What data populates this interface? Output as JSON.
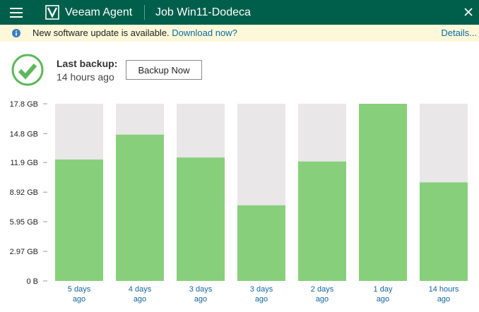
{
  "titlebar": {
    "app_name": "Veeam Agent",
    "job_title": "Job Win11-Dodeca",
    "bg_color": "#005f4b"
  },
  "notice": {
    "message": "New software update is available.",
    "link": "Download now?",
    "details": "Details..."
  },
  "status": {
    "last_backup_label": "Last backup:",
    "last_backup_value": "14 hours ago",
    "backup_button": "Backup Now",
    "state_icon": "success-check-icon",
    "state_color": "#5cb85c"
  },
  "chart_data": {
    "type": "bar",
    "categories": [
      [
        "5 days",
        "ago"
      ],
      [
        "4 days",
        "ago"
      ],
      [
        "3 days",
        "ago"
      ],
      [
        "3 days",
        "ago"
      ],
      [
        "2 days",
        "ago"
      ],
      [
        "1 day",
        "ago"
      ],
      [
        "14 hours",
        "ago"
      ]
    ],
    "values_gb": [
      12.2,
      14.7,
      12.4,
      7.6,
      12.0,
      17.8,
      9.9
    ],
    "ylim_gb": [
      0,
      17.8
    ],
    "y_ticks": [
      {
        "label": "17.8 GB",
        "value": 17.8
      },
      {
        "label": "14.8 GB",
        "value": 14.8
      },
      {
        "label": "11.9 GB",
        "value": 11.9
      },
      {
        "label": "8.92 GB",
        "value": 8.92
      },
      {
        "label": "5.95 GB",
        "value": 5.95
      },
      {
        "label": "2.97 GB",
        "value": 2.97
      },
      {
        "label": "0 B",
        "value": 0
      }
    ],
    "grid": true,
    "bar_color": "#88cf7c",
    "track_color": "#e9e7e8",
    "label_color": "#1266a0"
  }
}
